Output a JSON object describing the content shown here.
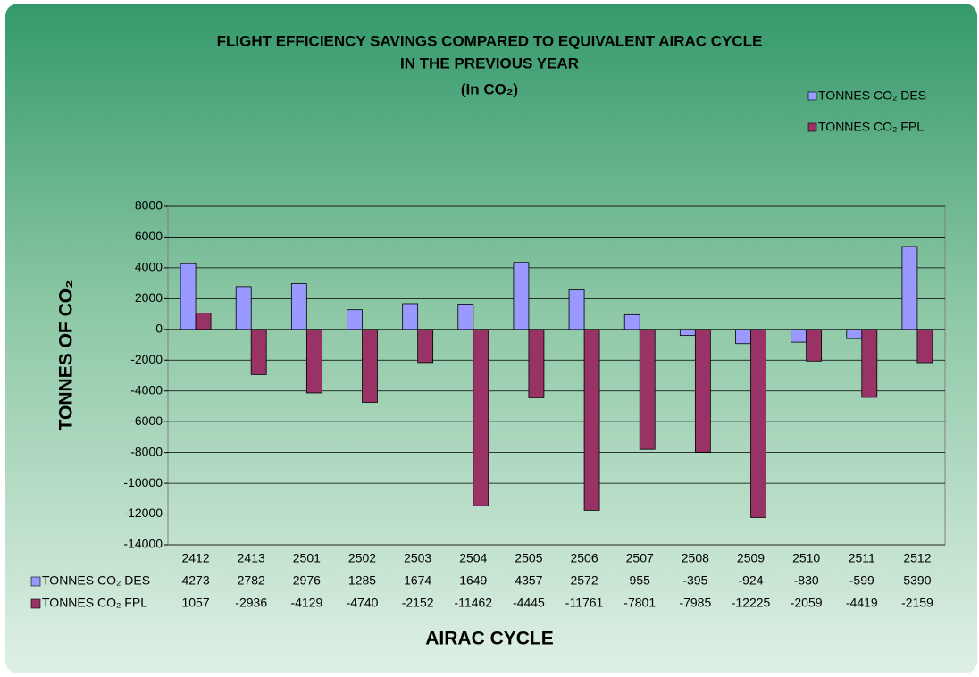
{
  "chart_data": {
    "type": "bar",
    "title": [
      "FLIGHT EFFICIENCY SAVINGS COMPARED TO EQUIVALENT AIRAC CYCLE",
      "IN THE PREVIOUS YEAR",
      "(In CO₂)"
    ],
    "xlabel": "AIRAC CYCLE",
    "ylabel": "TONNES OF CO₂",
    "categories": [
      "2412",
      "2413",
      "2501",
      "2502",
      "2503",
      "2504",
      "2505",
      "2506",
      "2507",
      "2508",
      "2509",
      "2510",
      "2511",
      "2512"
    ],
    "series": [
      {
        "name": "TONNES CO₂ DES",
        "color": "#9999ff",
        "values": [
          4273,
          2782,
          2976,
          1285,
          1674,
          1649,
          4357,
          2572,
          955,
          -395,
          -924,
          -830,
          -599,
          5390
        ]
      },
      {
        "name": "TONNES CO₂ FPL",
        "color": "#993366",
        "values": [
          1057,
          -2936,
          -4129,
          -4740,
          -2152,
          -11462,
          -4445,
          -11761,
          -7801,
          -7985,
          -12225,
          -2059,
          -4419,
          -2159
        ]
      }
    ],
    "ylim": [
      -14000,
      8000
    ],
    "yticks": [
      -14000,
      -12000,
      -10000,
      -8000,
      -6000,
      -4000,
      -2000,
      0,
      2000,
      4000,
      6000,
      8000
    ],
    "grid": true,
    "legend": "top-right"
  }
}
